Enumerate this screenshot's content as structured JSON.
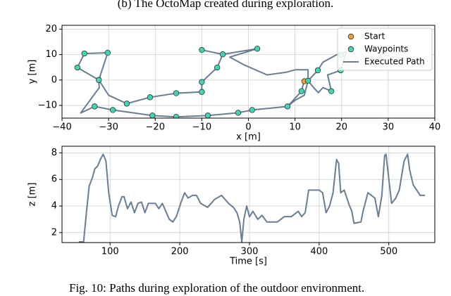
{
  "caption_top": "(b) The OctoMap created during exploration.",
  "caption": "Fig. 10: Paths during exploration of the outdoor environment.",
  "chart_data": [
    {
      "type": "scatter",
      "xlabel": "x [m]",
      "ylabel": "y [m]",
      "xlim": [
        -40,
        40
      ],
      "ylim": [
        -15,
        21.5
      ],
      "xticks": [
        {
          "value": -40,
          "label": "−40"
        },
        {
          "value": -30,
          "label": "−30"
        },
        {
          "value": -20,
          "label": "−20"
        },
        {
          "value": -10,
          "label": "−10"
        },
        0,
        10,
        20,
        30,
        40
      ],
      "yticks": [
        {
          "value": -10,
          "label": "−10"
        },
        0,
        10,
        20
      ],
      "grid": true,
      "legend": "upper right",
      "series": [
        {
          "name": "Start",
          "mode": "markers",
          "color": "#f0a030",
          "x": [
            12.0
          ],
          "values": [
            -0.5
          ]
        },
        {
          "name": "Waypoints",
          "mode": "markers",
          "color": "#3fd6b4",
          "x": [
            -35.2,
            -30.2,
            -36.7,
            -32.1,
            -33.0,
            -29.1,
            -26.1,
            -21.1,
            -15.5,
            -10.0,
            -10.0,
            -6.7,
            -5.5,
            -10.0,
            1.9,
            -20.6,
            -15.5,
            -8.7,
            -2.2,
            0.8,
            8.4,
            11.4,
            12.8,
            14.9,
            17.8,
            19.8,
            19.9
          ],
          "values": [
            10.4,
            10.7,
            4.9,
            0.0,
            -10.4,
            -11.8,
            -9.3,
            -6.8,
            -5.2,
            -4.7,
            -0.8,
            4.9,
            10.1,
            11.8,
            12.3,
            -14.0,
            -14.5,
            -14.0,
            -12.9,
            -11.8,
            -10.4,
            -4.4,
            -0.3,
            3.8,
            -4.4,
            3.8,
            9.9
          ]
        },
        {
          "name": "Executed Path",
          "mode": "line",
          "color": "#6a7d93",
          "x": [
            12,
            11.4,
            8.4,
            0.8,
            -2.2,
            -8.7,
            -15.5,
            -20.6,
            -29.1,
            -33,
            -36,
            -34,
            -32,
            -32.1,
            -36.7,
            -35.2,
            -30.2,
            -32.1,
            -30,
            -26.1,
            -21.1,
            -15.5,
            -10,
            -10,
            -6.7,
            -5.5,
            -10,
            -5.5,
            1.9,
            -4,
            -1,
            4,
            8,
            10,
            12.8,
            12.8,
            14.9,
            16,
            19,
            21,
            19.8,
            17,
            17.8,
            16,
            15,
            14,
            12.8,
            12,
            10,
            8.4,
            0.8
          ],
          "values": [
            0,
            -4.4,
            -10.4,
            -11.8,
            -12.9,
            -14,
            -14.5,
            -14,
            -11.8,
            -10.4,
            -13,
            -8,
            -3,
            0,
            4.9,
            10.4,
            10.7,
            0,
            -6,
            -9.3,
            -6.8,
            -5.2,
            -4.7,
            -0.8,
            4.9,
            10.1,
            11.8,
            10.1,
            12.3,
            9,
            6,
            2,
            3,
            4,
            4,
            -0.3,
            3.8,
            7,
            10,
            11,
            3.8,
            2,
            -4.4,
            -3,
            -5,
            -3,
            -0.3,
            -6,
            -8,
            -10.4,
            -11.8
          ]
        }
      ]
    },
    {
      "type": "line",
      "xlabel": "Time [s]",
      "ylabel": "z [m]",
      "xlim": [
        31,
        566
      ],
      "ylim": [
        1.25,
        8.5
      ],
      "xticks": [
        100,
        200,
        300,
        400,
        500
      ],
      "yticks": [
        2,
        4,
        6,
        8
      ],
      "grid": true,
      "series": [
        {
          "mode": "line",
          "color": "#6a7d93",
          "x": [
            55,
            62,
            66,
            70,
            75,
            78,
            82,
            86,
            90,
            94,
            98,
            103,
            108,
            112,
            117,
            120,
            125,
            130,
            135,
            140,
            145,
            150,
            155,
            165,
            170,
            175,
            180,
            185,
            190,
            195,
            202,
            207,
            212,
            218,
            224,
            230,
            240,
            250,
            260,
            270,
            277,
            282,
            286,
            289,
            292,
            296,
            300,
            305,
            312,
            318,
            325,
            340,
            350,
            360,
            370,
            375,
            380,
            385,
            400,
            405,
            410,
            415,
            420,
            425,
            428,
            431,
            436,
            443,
            447,
            450,
            460,
            463,
            470,
            480,
            485,
            490,
            494,
            496,
            499,
            504,
            510,
            515,
            522,
            527,
            530,
            535,
            540,
            545,
            552
          ],
          "values": [
            1.3,
            1.3,
            3.5,
            5.5,
            6.2,
            6.8,
            7.0,
            7.5,
            7.9,
            7.4,
            5,
            3.3,
            3.2,
            4,
            4.7,
            4.7,
            3.8,
            4.3,
            3.5,
            4.2,
            4.3,
            3.5,
            4.2,
            4.2,
            3.8,
            4.2,
            3.6,
            3.0,
            2.8,
            3.2,
            4.3,
            5,
            4.6,
            4.8,
            4.8,
            4.2,
            3.9,
            4.5,
            4.8,
            4.2,
            3.9,
            3.5,
            2.8,
            1.3,
            3,
            4,
            3.2,
            3.6,
            3,
            3.3,
            2.8,
            2.8,
            3.2,
            3.2,
            3.6,
            3.2,
            3.5,
            5.2,
            5.2,
            5,
            3.5,
            4,
            5,
            7.5,
            7.2,
            5,
            5.2,
            4.1,
            3.6,
            2.7,
            2.8,
            3.6,
            5,
            4.6,
            3.2,
            4.8,
            7.8,
            7.9,
            6.5,
            4.2,
            4.6,
            5.2,
            7.4,
            7.9,
            6.7,
            5.6,
            5.2,
            4.8,
            4.8
          ]
        }
      ]
    }
  ]
}
